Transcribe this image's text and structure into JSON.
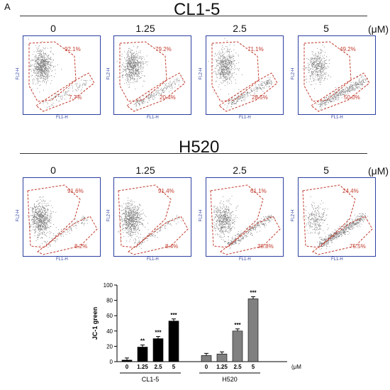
{
  "panel_letter": "A",
  "cell_lines": [
    {
      "name": "CL1-5",
      "concentrations": [
        "0",
        "1.25",
        "2.5",
        "5"
      ],
      "upper_pct": [
        "92.1%",
        "79.2%",
        "71.1%",
        "49.2%"
      ],
      "lower_pct": [
        "7.7%",
        "20.4%",
        "28.5%",
        "50.0%"
      ]
    },
    {
      "name": "H520",
      "concentrations": [
        "0",
        "1.25",
        "2.5",
        "5"
      ],
      "upper_pct": [
        "91.6%",
        "91.4%",
        "61.1%",
        "24.4%"
      ],
      "lower_pct": [
        "8.2%",
        "8.4%",
        "38.8%",
        "75.5%"
      ]
    }
  ],
  "unit": "(μM)",
  "axis_labels": {
    "x": "FL1-H",
    "y": "FL2-H"
  },
  "colors": {
    "gate": "#c0392b",
    "frame": "#2c3fa0",
    "bar_black": "#000000",
    "bar_gray": "#808080"
  },
  "chart_data": {
    "type": "bar",
    "ylabel": "JC-1 green",
    "ylim": [
      0,
      100
    ],
    "yticks": [
      "0",
      "20",
      "40",
      "60",
      "80",
      "100"
    ],
    "unit": "(μM)",
    "groups": [
      {
        "name": "CL1-5",
        "categories": [
          "0",
          "1.25",
          "2.5",
          "5"
        ],
        "values": [
          2,
          19,
          30,
          53
        ],
        "significance": [
          "",
          "**",
          "***",
          "***"
        ],
        "color": "#000000"
      },
      {
        "name": "H520",
        "categories": [
          "0",
          "1.25",
          "2.5",
          "5"
        ],
        "values": [
          8,
          10,
          40,
          82
        ],
        "significance": [
          "",
          "",
          "***",
          "***"
        ],
        "color": "#808080"
      }
    ]
  }
}
